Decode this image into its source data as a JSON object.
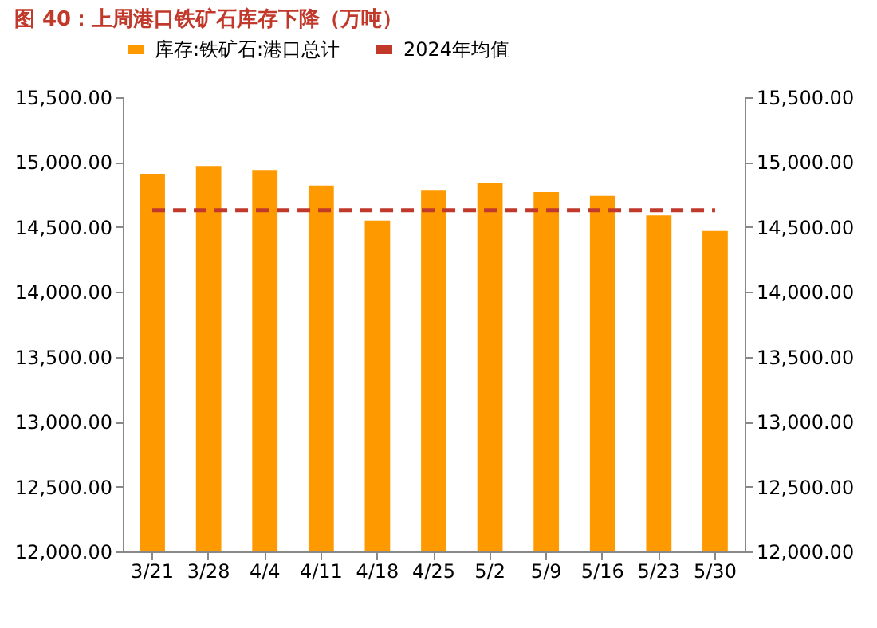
{
  "chart_data": {
    "type": "bar",
    "title": "图 40：上周港口铁矿石库存下降（万吨）",
    "categories": [
      "3/21",
      "3/28",
      "4/4",
      "4/11",
      "4/18",
      "4/25",
      "5/2",
      "5/9",
      "5/16",
      "5/23",
      "5/30"
    ],
    "series": [
      {
        "name": "库存:铁矿石:港口总计",
        "color": "#ff9900",
        "values": [
          14910,
          14970,
          14940,
          14820,
          14550,
          14780,
          14840,
          14770,
          14740,
          14590,
          14470
        ]
      },
      {
        "name": "2024年均值",
        "type": "line",
        "axis": "y2",
        "line_style": "dashed",
        "marker": "none",
        "color": "#c0392b",
        "values": [
          14630,
          14630,
          14630,
          14630,
          14630,
          14630,
          14630,
          14630,
          14630,
          14630,
          14630
        ]
      }
    ],
    "ylim": [
      12000,
      15500
    ],
    "yticks": [
      {
        "value": 12000,
        "label": "12,000.00"
      },
      {
        "value": 12500,
        "label": "12,500.00"
      },
      {
        "value": 13000,
        "label": "13,000.00"
      },
      {
        "value": 13500,
        "label": "13,500.00"
      },
      {
        "value": 14000,
        "label": "14,000.00"
      },
      {
        "value": 14500,
        "label": "14,500.00"
      },
      {
        "value": 15000,
        "label": "15,000.00"
      },
      {
        "value": 15500,
        "label": "15,500.00"
      }
    ],
    "y2lim": [
      12000,
      15500
    ],
    "y2ticks": [
      {
        "value": 12000,
        "label": "12,000.00"
      },
      {
        "value": 12500,
        "label": "12,500.00"
      },
      {
        "value": 13000,
        "label": "13,000.00"
      },
      {
        "value": 13500,
        "label": "13,500.00"
      },
      {
        "value": 14000,
        "label": "14,000.00"
      },
      {
        "value": 14500,
        "label": "14,500.00"
      },
      {
        "value": 15000,
        "label": "15,000.00"
      },
      {
        "value": 15500,
        "label": "15,500.00"
      }
    ],
    "legend": "top",
    "grid": false
  }
}
